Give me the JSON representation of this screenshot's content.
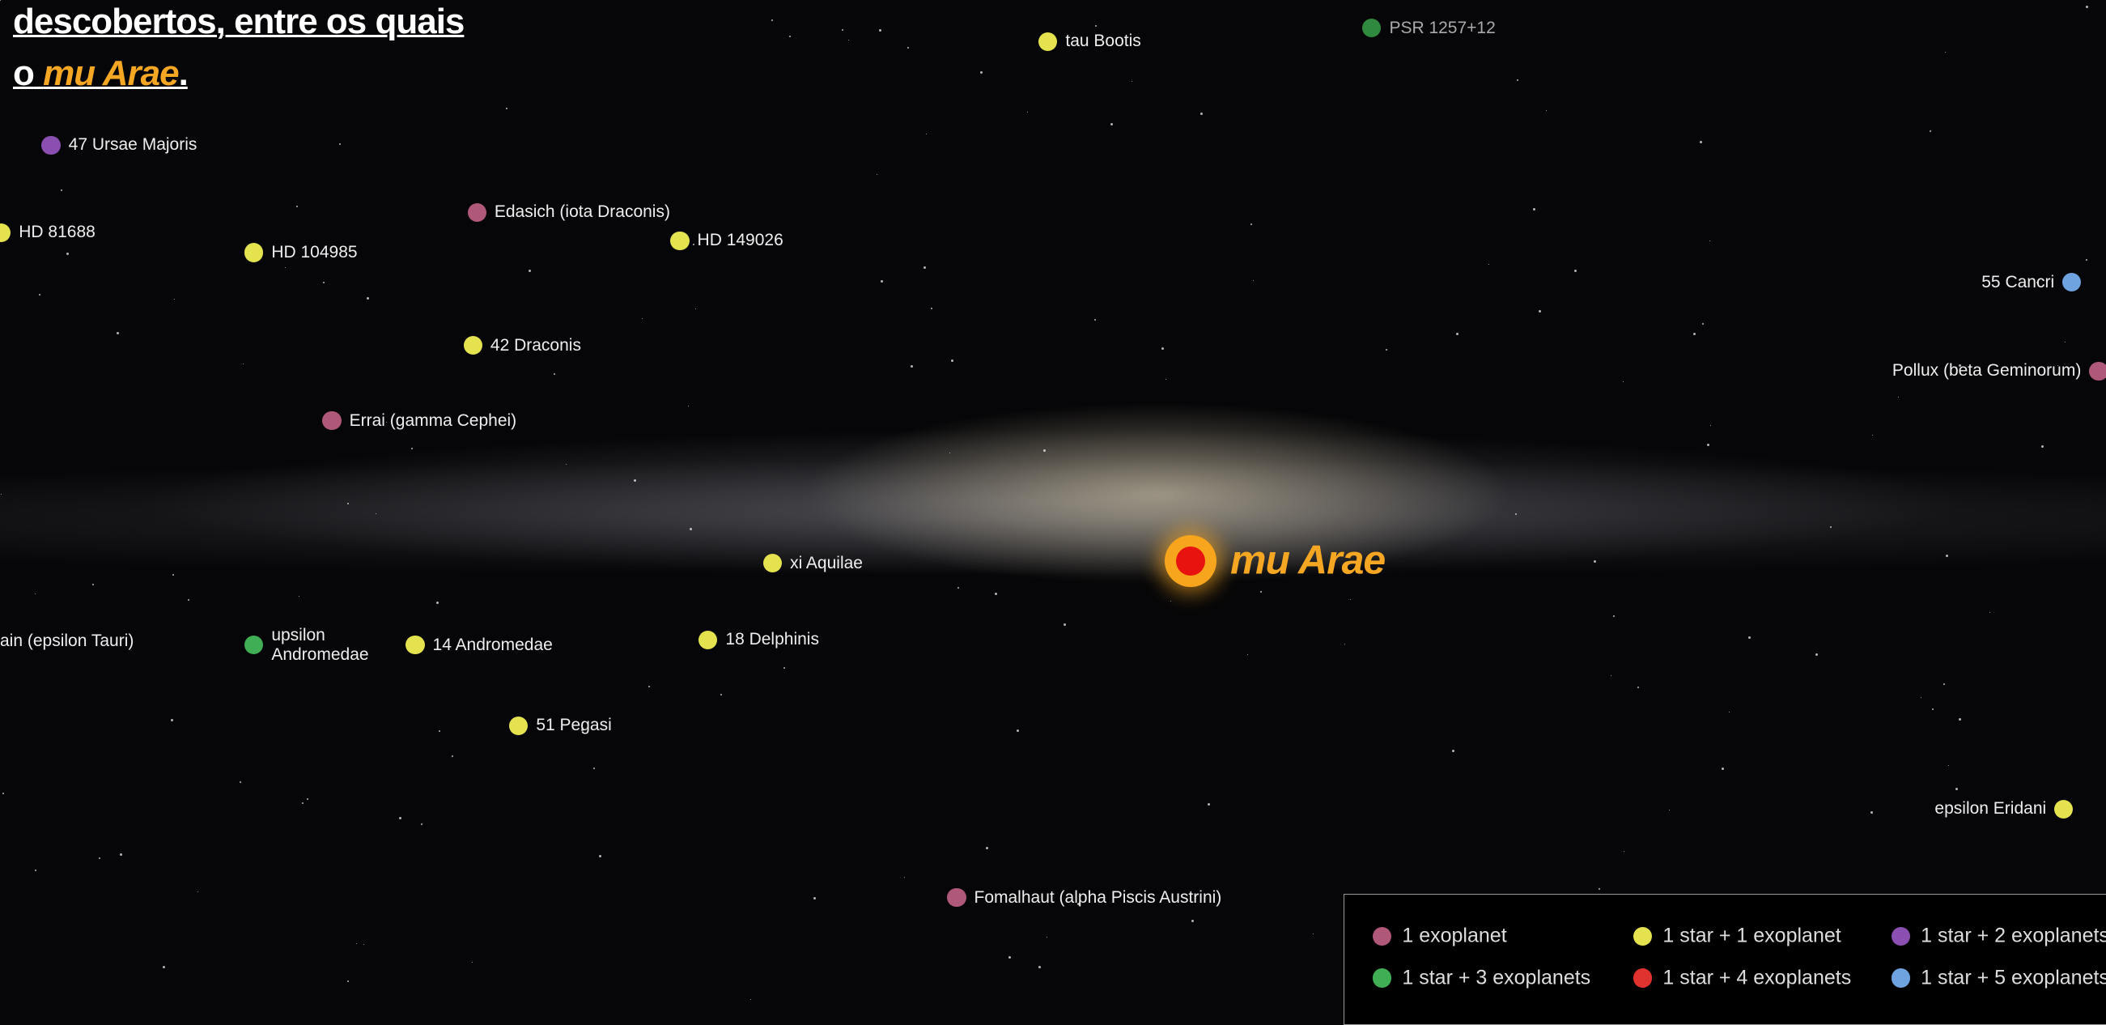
{
  "header": {
    "line1": "descobertos, entre os quais",
    "line2_prefix": "o",
    "highlight": "mu Arae",
    "line2_suffix": "."
  },
  "stars": [
    "tau Bootis",
    "PSR 1257+12",
    "47 Ursae Majoris",
    "HD 81688",
    "HD 104985",
    "Edasich (iota Draconis)",
    "HD 149026",
    "55 Cancri",
    "Pollux (beta Geminorum)",
    "42 Draconis",
    "Errai (gamma Cephei)",
    "xi Aquilae",
    "ain (epsilon Tauri)",
    "upsilon Andromedae",
    "14 Andromedae",
    "18 Delphinis",
    "51 Pegasi",
    "epsilon Eridani",
    "Fomalhaut (alpha Piscis Austrini)"
  ],
  "focus": {
    "label": "mu Arae"
  },
  "legend": [
    "1 exoplanet",
    "1 star + 1 exoplanet",
    "1 star + 2 exoplanets",
    "1 star + 3 exoplanets",
    "1 star + 4 exoplanets",
    "1 star + 5 exoplanets"
  ]
}
